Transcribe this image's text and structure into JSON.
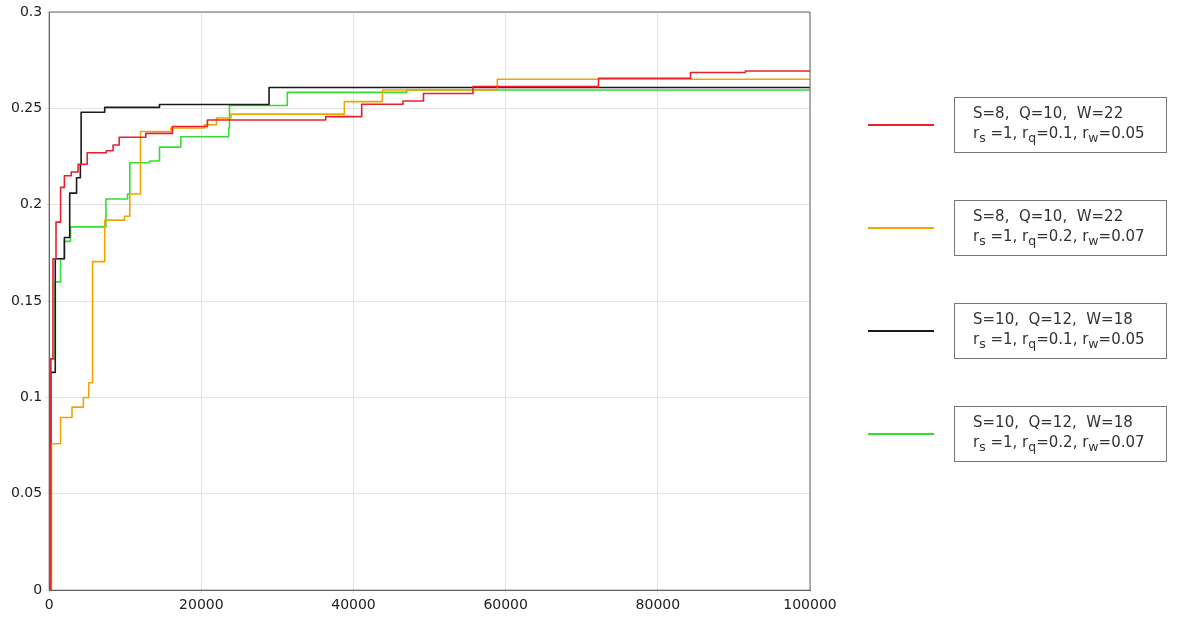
{
  "chart_data": {
    "type": "step",
    "xlim": [
      0,
      100000
    ],
    "xticks": [
      0,
      20000,
      40000,
      60000,
      80000,
      100000
    ],
    "ylim": [
      0,
      0.3
    ],
    "yticks": [
      0,
      0.05,
      0.1,
      0.15,
      0.2,
      0.25,
      0.3
    ],
    "grid": true,
    "legend": "right",
    "line_style": "solid",
    "marker": "none",
    "series": [
      {
        "name": "S=8,  Q=10,  W=22\nr$_{s}$ =1, r$_{q}$=0.1, r$_{w}$=0.05",
        "color": "#e8202a",
        "x": [
          0,
          200,
          500,
          900,
          1500,
          2000,
          2900,
          3800,
          5000,
          7500,
          8400,
          9200,
          12700,
          16200,
          20800,
          36350,
          41080,
          46500,
          49200,
          55700,
          72200,
          84300,
          91500,
          100000
        ],
        "values": [
          0,
          0.12,
          0.172,
          0.191,
          0.209,
          0.215,
          0.217,
          0.221,
          0.227,
          0.228,
          0.231,
          0.235,
          0.237,
          0.2406,
          0.244,
          0.2457,
          0.2521,
          0.2538,
          0.2577,
          0.2613,
          0.2656,
          0.2686,
          0.2694,
          0.2694
        ]
      },
      {
        "name": "S=8,  Q=10,  W=22\nr$_{s}$ =1, r$_{q}$=0.2, r$_{w}$=0.07",
        "color": "#f0a500",
        "x": [
          0,
          300,
          1500,
          3000,
          4500,
          5200,
          5700,
          7300,
          9900,
          10600,
          12000,
          16000,
          20400,
          22000,
          23900,
          38800,
          43800,
          58900,
          100000
        ],
        "values": [
          0,
          0.076,
          0.0896,
          0.095,
          0.1,
          0.1076,
          0.1705,
          0.192,
          0.194,
          0.2056,
          0.238,
          0.2398,
          0.2415,
          0.245,
          0.247,
          0.2535,
          0.2595,
          0.2651,
          0.2651
        ]
      },
      {
        "name": "S=10,  Q=12,  W=18\nr$_{s}$ =1, r$_{q}$=0.1, r$_{w}$=0.05",
        "color": "#1a1a1a",
        "x": [
          0,
          200,
          800,
          2000,
          2700,
          3600,
          4100,
          4200,
          7300,
          14500,
          28900,
          100000
        ],
        "values": [
          0,
          0.113,
          0.172,
          0.183,
          0.206,
          0.214,
          0.221,
          0.248,
          0.2505,
          0.252,
          0.2608,
          0.2608
        ]
      },
      {
        "name": "S=10,  Q=12,  W=18\nr$_{s}$ =1, r$_{q}$=0.2, r$_{w}$=0.07",
        "color": "#33dd33",
        "x": [
          0,
          200,
          800,
          1500,
          2000,
          2800,
          7460,
          10300,
          10600,
          13200,
          14500,
          17300,
          23600,
          23700,
          31300,
          47000,
          100000
        ],
        "values": [
          0,
          0.12,
          0.16,
          0.172,
          0.181,
          0.1885,
          0.203,
          0.2056,
          0.2218,
          0.2227,
          0.2299,
          0.2353,
          0.2398,
          0.2515,
          0.2583,
          0.2595,
          0.2595
        ]
      }
    ]
  }
}
